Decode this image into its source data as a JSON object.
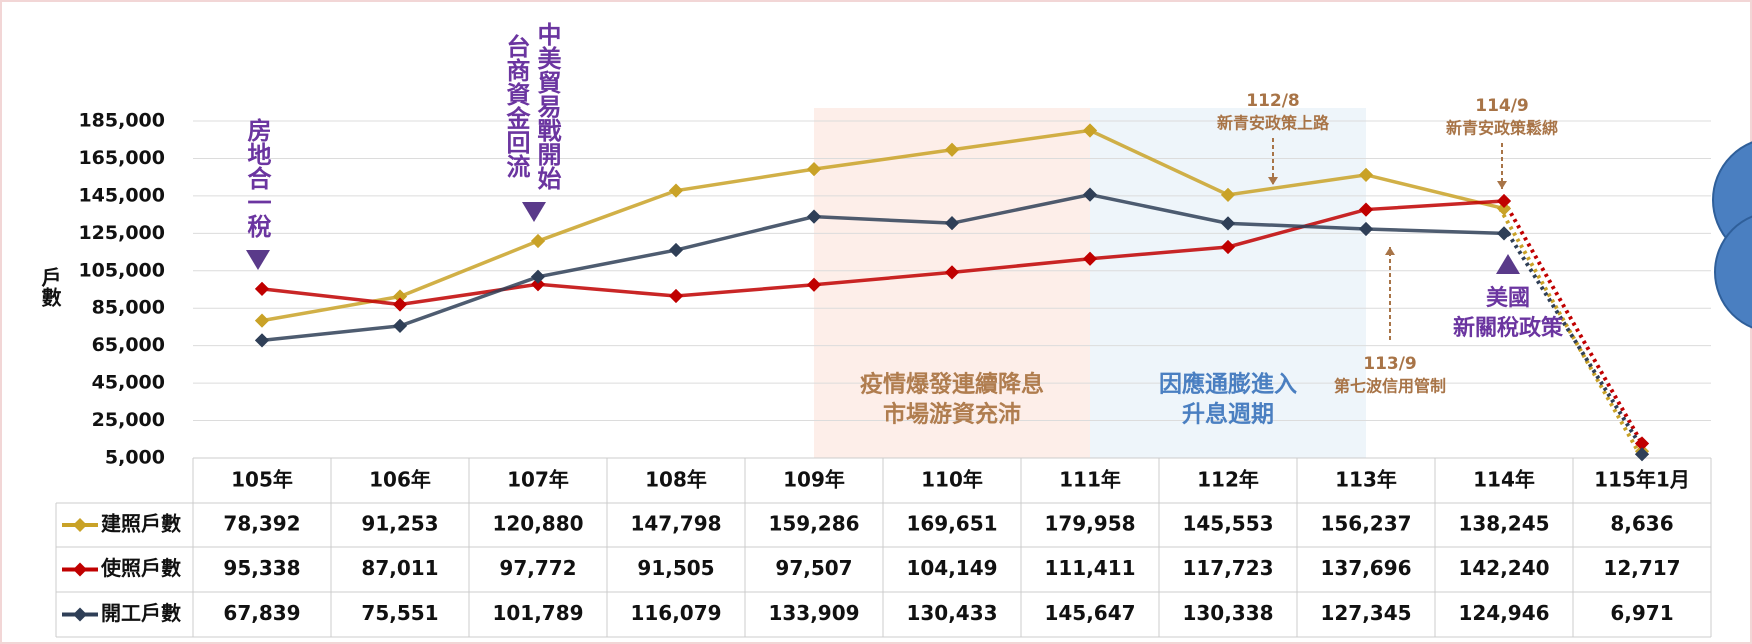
{
  "chart_data": {
    "type": "line",
    "y_label": "戶數",
    "categories": [
      "105年",
      "106年",
      "107年",
      "108年",
      "109年",
      "110年",
      "111年",
      "112年",
      "113年",
      "114年",
      "115年1月"
    ],
    "series": [
      {
        "name": "建照戶數",
        "color": "#c9a227",
        "values": [
          78392,
          91253,
          120880,
          147798,
          159286,
          169651,
          179958,
          145553,
          156237,
          138245,
          8636
        ],
        "value_labels": [
          "78,392",
          "91,253",
          "120,880",
          "147,798",
          "159,286",
          "169,651",
          "179,958",
          "145,553",
          "156,237",
          "138,245",
          "8,636"
        ]
      },
      {
        "name": "使照戶數",
        "color": "#c00000",
        "values": [
          95338,
          87011,
          97772,
          91505,
          97507,
          104149,
          111411,
          117723,
          137696,
          142240,
          12717
        ],
        "value_labels": [
          "95,338",
          "87,011",
          "97,772",
          "91,505",
          "97,507",
          "104,149",
          "111,411",
          "117,723",
          "137,696",
          "142,240",
          "12,717"
        ]
      },
      {
        "name": "開工戶數",
        "color": "#2f3f57",
        "values": [
          67839,
          75551,
          101789,
          116079,
          133909,
          130433,
          145647,
          130338,
          127345,
          124946,
          6971
        ],
        "value_labels": [
          "67,839",
          "75,551",
          "101,789",
          "116,079",
          "133,909",
          "130,433",
          "145,647",
          "130,338",
          "127,345",
          "124,946",
          "6,971"
        ]
      }
    ],
    "ylim": [
      5000,
      185000
    ],
    "yticks": [
      {
        "value": 185000,
        "label": "185,000"
      },
      {
        "value": 165000,
        "label": "165,000"
      },
      {
        "value": 145000,
        "label": "145,000"
      },
      {
        "value": 125000,
        "label": "125,000"
      },
      {
        "value": 105000,
        "label": "105,000"
      },
      {
        "value": 85000,
        "label": "85,000"
      },
      {
        "value": 65000,
        "label": "65,000"
      },
      {
        "value": 45000,
        "label": "45,000"
      },
      {
        "value": 25000,
        "label": "25,000"
      },
      {
        "value": 5000,
        "label": "5,000"
      }
    ],
    "grid": true,
    "regions": [
      {
        "lines": [
          "疫情爆發連續降息",
          "市場游資充沛"
        ],
        "color": "#b07d4f"
      },
      {
        "lines": [
          "因應通膨進入",
          "升息週期"
        ],
        "color": "#4a7fc1"
      }
    ],
    "annotations": [
      {
        "lines": [
          "房地合一稅"
        ]
      },
      {
        "lines": [
          "中美貿易戰開始",
          "台商資金回流"
        ]
      },
      {
        "lines": [
          "112/8",
          "新青安政策上路"
        ]
      },
      {
        "lines": [
          "113/9",
          "第七波信用管制"
        ]
      },
      {
        "lines": [
          "114/9",
          "新青安政策鬆綁"
        ]
      },
      {
        "lines": [
          "美國",
          "新關稅政策"
        ]
      }
    ]
  }
}
